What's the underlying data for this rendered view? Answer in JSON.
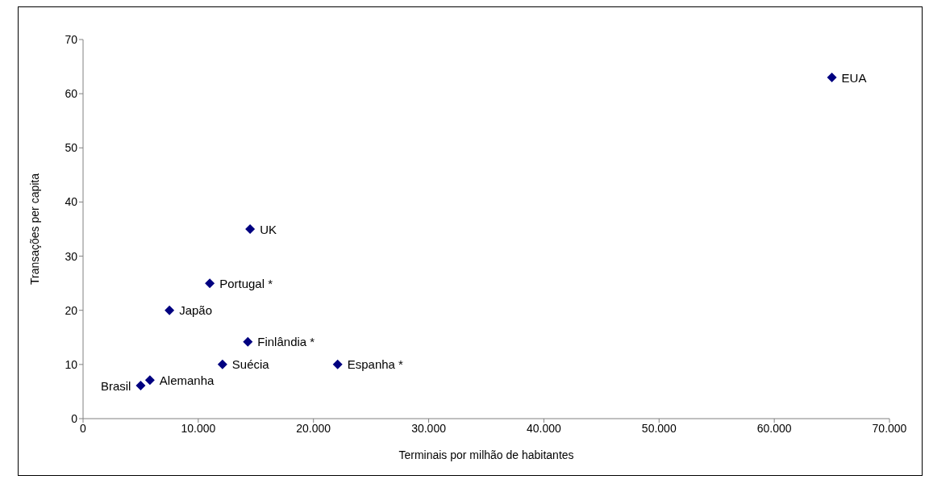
{
  "chart_data": {
    "type": "scatter",
    "xlabel": "Terminais por milhão de habitantes",
    "ylabel": "Transações per capita",
    "x": [
      65000,
      14500,
      11000,
      7500,
      14300,
      12100,
      22100,
      5800,
      5000
    ],
    "values": [
      63,
      35,
      25,
      20,
      14.2,
      10,
      10,
      7.1,
      6.1
    ],
    "color": "#000080",
    "marker": "diamond",
    "grid": false,
    "legend": false,
    "xlim": [
      0,
      70000
    ],
    "xticks": [
      0,
      {
        "value": 10000,
        "label": "10.000"
      },
      {
        "value": 20000,
        "label": "20.000"
      },
      {
        "value": 30000,
        "label": "30.000"
      },
      {
        "value": 40000,
        "label": "40.000"
      },
      {
        "value": 50000,
        "label": "50.000"
      },
      {
        "value": 60000,
        "label": "60.000"
      },
      {
        "value": 70000,
        "label": "70.000"
      }
    ],
    "ylim": [
      0,
      70
    ],
    "yticks": [
      0,
      10,
      20,
      30,
      40,
      50,
      60,
      70
    ],
    "annotations": [
      {
        "text": "EUA",
        "x": 65000,
        "y": 63
      },
      {
        "text": "UK",
        "x": 14500,
        "y": 35
      },
      {
        "text": "Portugal *",
        "x": 11000,
        "y": 25
      },
      {
        "text": "Japão",
        "x": 7500,
        "y": 20
      },
      {
        "text": "Finlândia *",
        "x": 14300,
        "y": 14.2
      },
      {
        "text": "Suécia",
        "x": 12100,
        "y": 10
      },
      {
        "text": "Espanha *",
        "x": 22100,
        "y": 10
      },
      {
        "text": "Brasil",
        "x": 5000,
        "y": 6.1
      },
      {
        "text": "Alemanha",
        "x": 5800,
        "y": 7.1
      }
    ]
  }
}
